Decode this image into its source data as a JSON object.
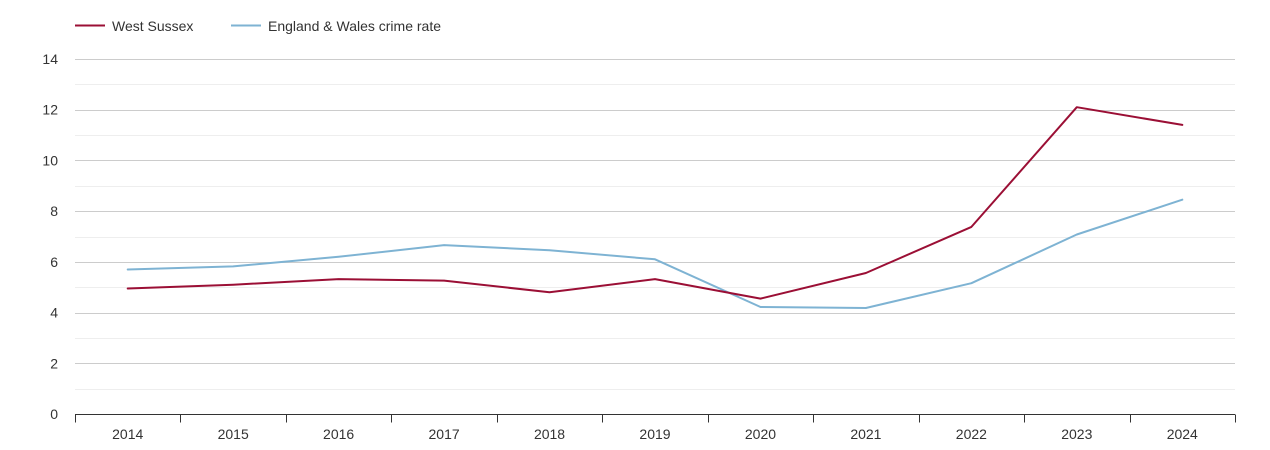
{
  "chart_data": {
    "type": "line",
    "title": "",
    "xlabel": "",
    "ylabel": "",
    "categories": [
      "2014",
      "2015",
      "2016",
      "2017",
      "2018",
      "2019",
      "2020",
      "2021",
      "2022",
      "2023",
      "2024"
    ],
    "ylim": [
      0,
      14
    ],
    "yticks": [
      "0",
      "2",
      "4",
      "6",
      "8",
      "10",
      "12",
      "14"
    ],
    "grid": true,
    "legend_position": "top-left",
    "series": [
      {
        "name": "West Sussex",
        "color": "#9b0f35",
        "values": [
          4.95,
          5.1,
          5.32,
          5.26,
          4.8,
          5.32,
          4.55,
          5.56,
          7.38,
          12.1,
          11.4
        ]
      },
      {
        "name": "England & Wales crime rate",
        "color": "#7eb3d3",
        "values": [
          5.7,
          5.82,
          6.2,
          6.66,
          6.46,
          6.1,
          4.22,
          4.18,
          5.16,
          7.08,
          8.45
        ]
      }
    ]
  }
}
